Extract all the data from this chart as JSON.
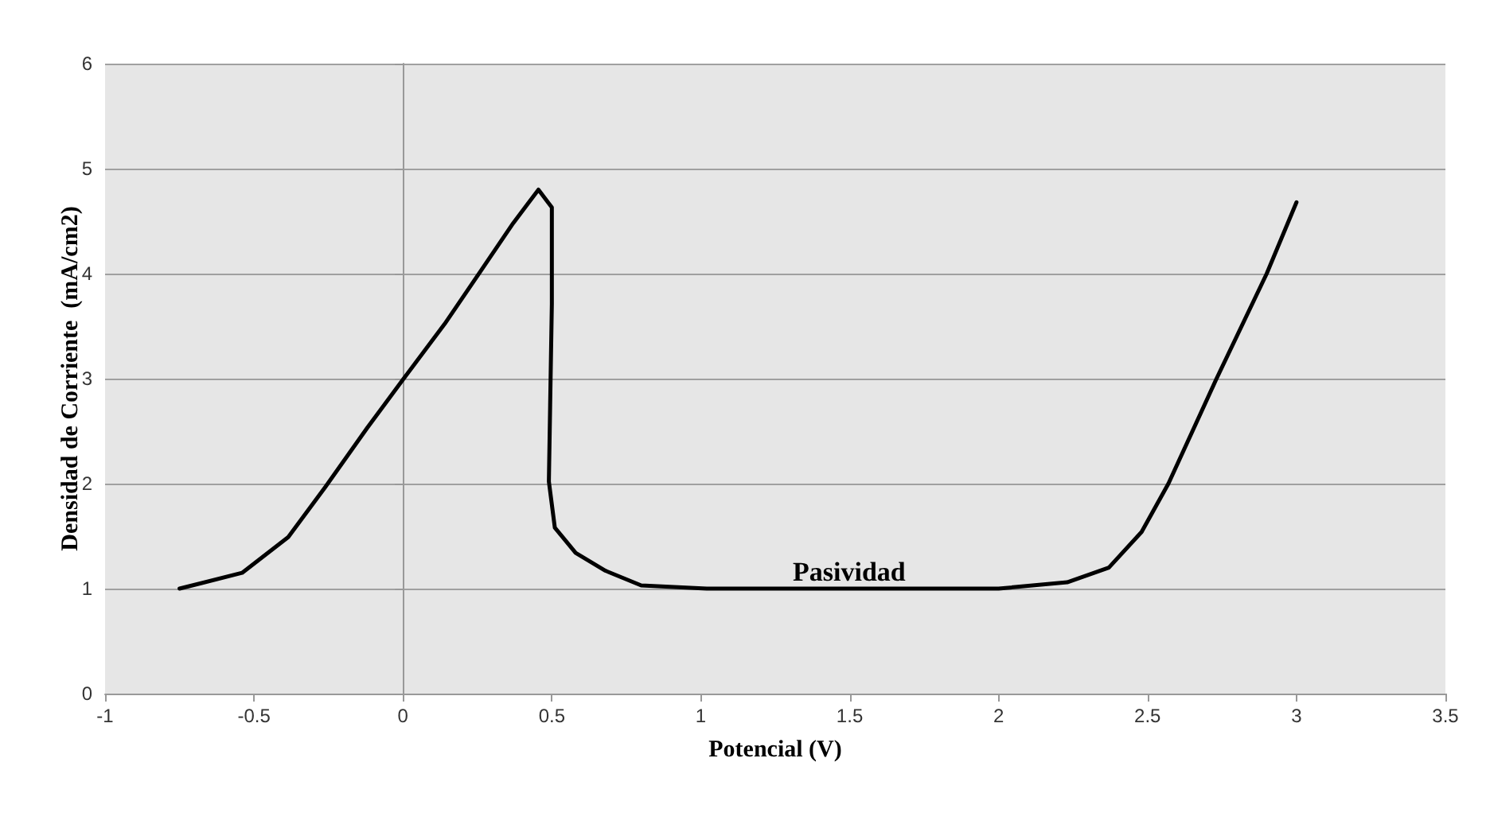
{
  "chart_data": {
    "type": "line",
    "xlabel": "Potencial (V)",
    "ylabel": "Densidad de Corriente  (mA/cm2)",
    "xlim": [
      -1,
      3.5
    ],
    "xticks": [
      -1,
      -0.5,
      0,
      0.5,
      1,
      1.5,
      2,
      2.5,
      3,
      3.5
    ],
    "ylim": [
      0,
      6
    ],
    "yticks": [
      0,
      1,
      2,
      3,
      4,
      5,
      6
    ],
    "grid": "y",
    "marker": "none",
    "line_style": "solid",
    "series": [
      {
        "color": "#000000",
        "x": [
          -0.75,
          -0.54,
          -0.385,
          -0.26,
          -0.12,
          0,
          0.14,
          0.26,
          0.37,
          0.455,
          0.5,
          0.5,
          0.49,
          0.51,
          0.58,
          0.68,
          0.8,
          1.02,
          1.5,
          2.0,
          2.23,
          2.37,
          2.48,
          2.57,
          2.73,
          2.9,
          3.0
        ],
        "values": [
          1.0,
          1.15,
          1.49,
          1.97,
          2.53,
          2.99,
          3.52,
          4.02,
          4.48,
          4.8,
          4.63,
          3.71,
          2.02,
          1.58,
          1.34,
          1.17,
          1.03,
          1.0,
          1.0,
          1.0,
          1.06,
          1.2,
          1.54,
          2.0,
          2.99,
          4.0,
          4.68
        ]
      }
    ],
    "annotations": [
      "Pasividad"
    ]
  }
}
